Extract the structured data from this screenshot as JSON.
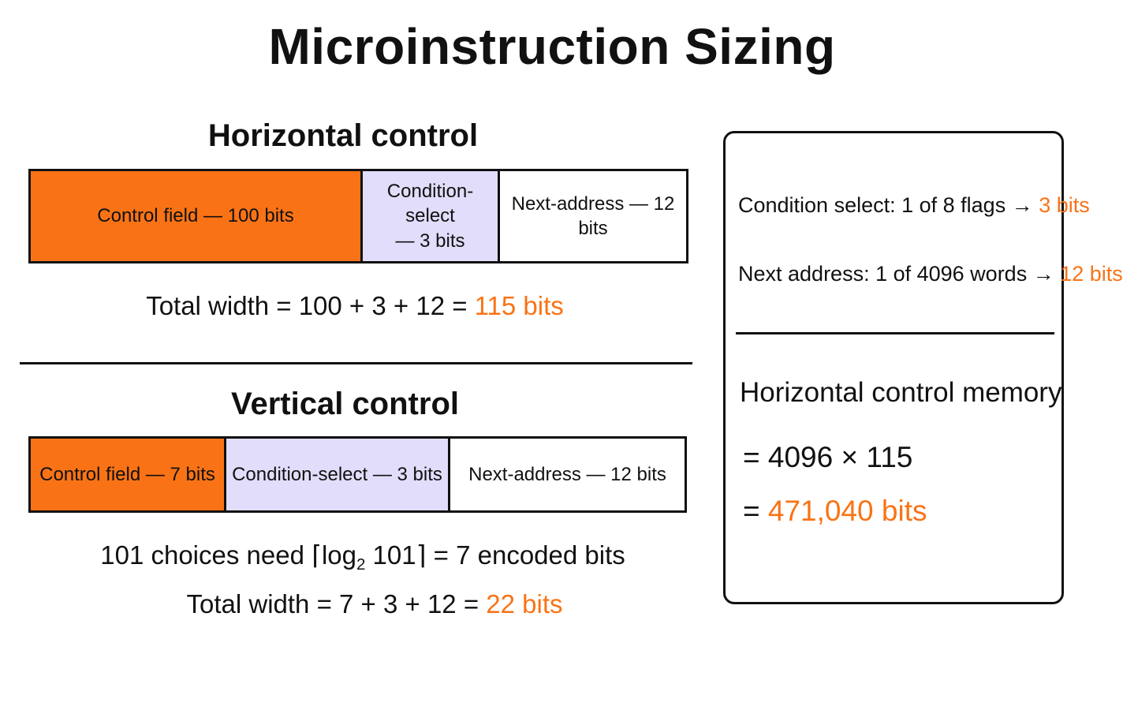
{
  "title": "Microinstruction Sizing",
  "horizontal": {
    "heading": "Horizontal control",
    "fields": [
      {
        "label": "Control field — 100 bits",
        "bits": 100
      },
      {
        "label": "Condition-select\n— 3 bits",
        "bits": 3
      },
      {
        "label": "Next-address — 12 bits",
        "bits": 12
      }
    ],
    "total_prefix": "Total width = 100 + 3 + 12 = ",
    "total_result": "115 bits"
  },
  "vertical": {
    "heading": "Vertical control",
    "fields": [
      {
        "label": "Control field — 7 bits",
        "bits": 7
      },
      {
        "label": "Condition-select — 3 bits",
        "bits": 3
      },
      {
        "label": "Next-address — 12 bits",
        "bits": 12
      }
    ],
    "choices_prefix": "101 choices need ⌈log",
    "choices_sub": "2",
    "choices_suffix": " 101⌉ = 7 encoded bits",
    "total_prefix": "Total width = 7 + 3 + 12 = ",
    "total_result": "22 bits"
  },
  "side": {
    "condition_text": "Condition select: 1 of 8 flags → ",
    "condition_result": "3 bits",
    "next_text": "Next address: 1 of 4096 words → ",
    "next_result": "12 bits",
    "memory_heading": "Horizontal control memory",
    "memory_formula": "= 4096 × 115",
    "memory_eq": "= ",
    "memory_result": "471,040 bits"
  },
  "colors": {
    "accent": "#f97316",
    "condition_fill": "#e1ddfa",
    "ink": "#111111"
  }
}
